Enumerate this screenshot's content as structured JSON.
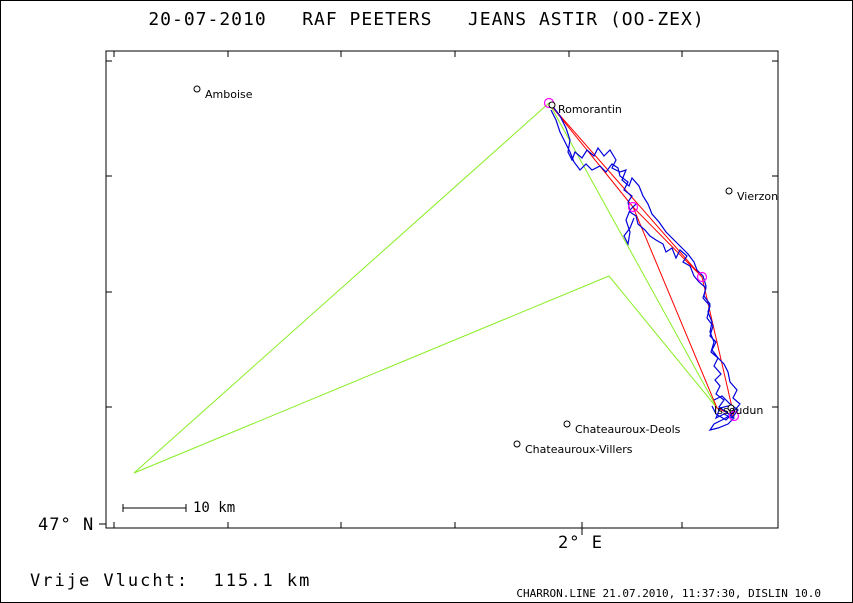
{
  "title": "20-07-2010   RAF PEETERS   JEANS ASTIR (OO-ZEX)",
  "axes": {
    "y_label": "47° N",
    "x_label": "2° E"
  },
  "scale_bar": {
    "label": "10 km"
  },
  "towns": [
    {
      "name": "Amboise"
    },
    {
      "name": "Romorantin"
    },
    {
      "name": "Vierzon"
    },
    {
      "name": "Chateauroux-Deols"
    },
    {
      "name": "Chateauroux-Villers"
    },
    {
      "name": "Issoudun"
    }
  ],
  "footer": {
    "distance": "Vrije Vlucht:  115.1 km",
    "credits": "CHARRON.LINE 21.07.2010, 11:37:30, DISLIN 10.0"
  },
  "colors": {
    "track": "#0000dd",
    "task_line": "#ff0000",
    "triangle": "#88ee22",
    "turnpoint": "#ff00ff"
  }
}
